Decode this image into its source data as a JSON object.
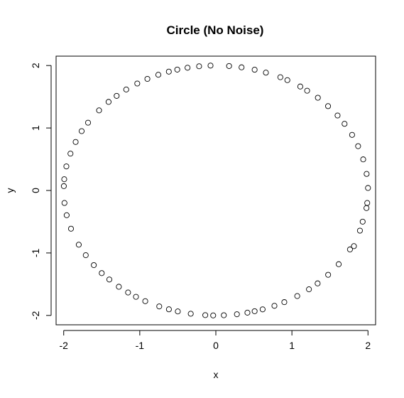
{
  "chart_data": {
    "type": "scatter",
    "title": "Circle (No Noise)",
    "xlabel": "x",
    "ylabel": "y",
    "xlim": [
      -2.1,
      2.1
    ],
    "ylim": [
      -2.15,
      2.15
    ],
    "xticks": [
      -2,
      -1,
      0,
      1,
      2
    ],
    "yticks": [
      -2,
      -1,
      0,
      1,
      2
    ],
    "grid": false,
    "legend": "none",
    "marker": "open-circle",
    "marker_color": "#000000",
    "series": [
      {
        "x": [
          0.174,
          0.338,
          0.51,
          0.658,
          0.848,
          0.94,
          1.11,
          1.2,
          1.341,
          1.475,
          1.6,
          1.692,
          1.791,
          1.87,
          1.937,
          1.982,
          2.0,
          1.99,
          1.98,
          1.93,
          1.894,
          1.815,
          1.763,
          1.615,
          1.476,
          1.338,
          1.224,
          1.07,
          0.9,
          0.77,
          0.615,
          0.51,
          0.415,
          0.277,
          0.105,
          -0.035,
          -0.139,
          -0.33,
          -0.5,
          -0.617,
          -0.744,
          -0.928,
          -1.05,
          -1.154,
          -1.275,
          -1.4,
          -1.5,
          -1.604,
          -1.71,
          -1.802,
          -1.904,
          -1.961,
          -1.99,
          -1.998,
          -1.993,
          -1.965,
          -1.911,
          -1.843,
          -1.764,
          -1.68,
          -1.535,
          -1.41,
          -1.304,
          -1.178,
          -1.033,
          -0.9,
          -0.756,
          -0.618,
          -0.507,
          -0.372,
          -0.22,
          -0.07
        ],
        "y": [
          1.992,
          1.971,
          1.933,
          1.886,
          1.813,
          1.766,
          1.664,
          1.597,
          1.484,
          1.35,
          1.2,
          1.067,
          0.89,
          0.709,
          0.498,
          0.265,
          0.04,
          -0.2,
          -0.282,
          -0.499,
          -0.643,
          -0.891,
          -0.944,
          -1.18,
          -1.35,
          -1.487,
          -1.582,
          -1.69,
          -1.787,
          -1.846,
          -1.903,
          -1.933,
          -1.956,
          -1.981,
          -1.997,
          -2.0,
          -1.995,
          -1.973,
          -1.936,
          -1.902,
          -1.856,
          -1.772,
          -1.702,
          -1.633,
          -1.541,
          -1.425,
          -1.323,
          -1.195,
          -1.036,
          -0.868,
          -0.612,
          -0.396,
          -0.2,
          0.07,
          0.18,
          0.385,
          0.59,
          0.776,
          0.95,
          1.085,
          1.282,
          1.418,
          1.514,
          1.616,
          1.712,
          1.786,
          1.852,
          1.902,
          1.935,
          1.965,
          1.988,
          1.999
        ]
      }
    ]
  }
}
